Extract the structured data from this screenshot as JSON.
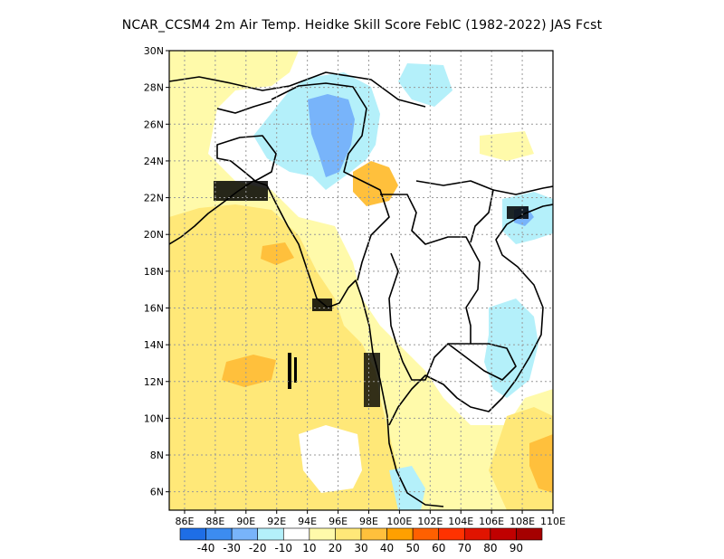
{
  "title": "NCAR_CCSM4  2m Air Temp. Heidke Skill Score FebIC (1982-2022) JAS Fcst",
  "map": {
    "lat_range": [
      5,
      30
    ],
    "lon_range": [
      85,
      110
    ],
    "grid": true,
    "lat_labels": [
      "30N",
      "28N",
      "26N",
      "24N",
      "22N",
      "20N",
      "18N",
      "16N",
      "14N",
      "12N",
      "10N",
      "8N",
      "6N"
    ],
    "lat_values": [
      30,
      28,
      26,
      24,
      22,
      20,
      18,
      16,
      14,
      12,
      10,
      8,
      6
    ],
    "lon_labels": [
      "86E",
      "88E",
      "90E",
      "92E",
      "94E",
      "96E",
      "98E",
      "100E",
      "102E",
      "104E",
      "106E",
      "108E",
      "110E"
    ],
    "lon_values": [
      86,
      88,
      90,
      92,
      94,
      96,
      98,
      100,
      102,
      104,
      106,
      108,
      110
    ]
  },
  "colorbar": {
    "colors": [
      "#1e6ee6",
      "#3c8cf0",
      "#78b4fa",
      "#b4f0fa",
      "#ffffff",
      "#fffaaa",
      "#ffe878",
      "#ffc03c",
      "#ffa000",
      "#ff6000",
      "#ff3200",
      "#e11400",
      "#c00000",
      "#a50000"
    ],
    "labels": [
      "-40",
      "-30",
      "-20",
      "-10",
      "10",
      "20",
      "30",
      "40",
      "50",
      "60",
      "70",
      "80",
      "90"
    ]
  },
  "icons": {
    "coastline": "coastline-outline",
    "borders": "country-border-lines"
  }
}
